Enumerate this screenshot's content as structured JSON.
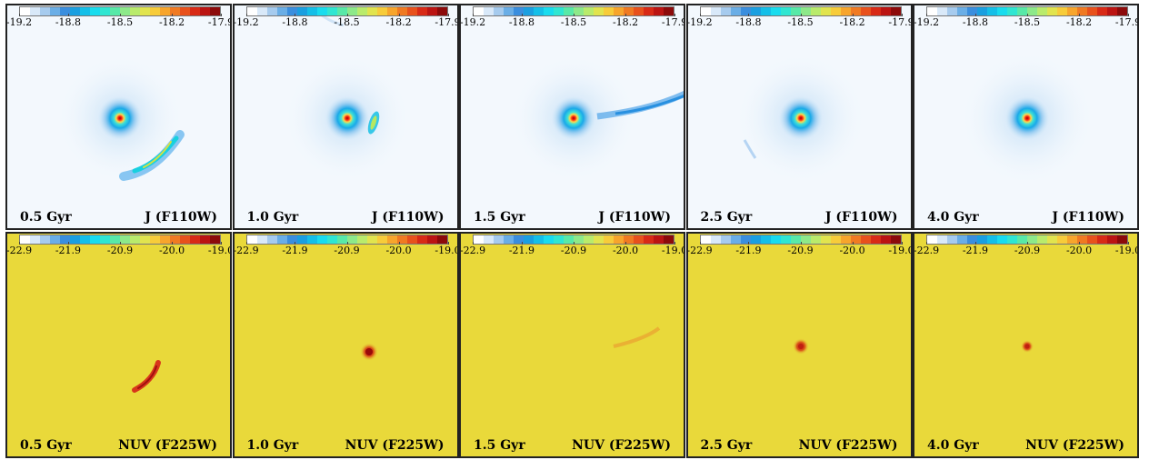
{
  "rows": [
    {
      "band": "J (F110W)",
      "ticks": [
        "-19.2",
        "-18.8",
        "-18.5",
        "-18.2",
        "-17.9"
      ],
      "background": "#f3f8fd",
      "colorbar": [
        "#ffffff",
        "#d9e9f9",
        "#a6cbee",
        "#6aaee6",
        "#3a8ede",
        "#1a9fe0",
        "#14bfe8",
        "#18dcee",
        "#2fe6d2",
        "#58e9a8",
        "#8de98a",
        "#b9eb6c",
        "#e1e44e",
        "#f7cc3a",
        "#f7a52c",
        "#f07a22",
        "#e8511c",
        "#d82a16",
        "#bb1412",
        "#8c0a0a"
      ],
      "panels": [
        {
          "time": "0.5 Gyr"
        },
        {
          "time": "1.0 Gyr"
        },
        {
          "time": "1.5 Gyr"
        },
        {
          "time": "2.5 Gyr"
        },
        {
          "time": "4.0 Gyr"
        }
      ]
    },
    {
      "band": "NUV (F225W)",
      "ticks": [
        "-22.9",
        "-21.9",
        "-20.9",
        "-20.0",
        "-19.0"
      ],
      "background": "#e9d93a",
      "colorbar": [
        "#ffffff",
        "#d9e9f9",
        "#a6cbee",
        "#6aaee6",
        "#3a8ede",
        "#1a9fe0",
        "#14bfe8",
        "#18dcee",
        "#2fe6d2",
        "#58e9a8",
        "#8de98a",
        "#b9eb6c",
        "#e1e44e",
        "#f7cc3a",
        "#f7a52c",
        "#f07a22",
        "#e8511c",
        "#d82a16",
        "#bb1412",
        "#8c0a0a"
      ],
      "panels": [
        {
          "time": "0.5 Gyr"
        },
        {
          "time": "1.0 Gyr"
        },
        {
          "time": "1.5 Gyr"
        },
        {
          "time": "2.5 Gyr"
        },
        {
          "time": "4.0 Gyr"
        }
      ]
    }
  ]
}
